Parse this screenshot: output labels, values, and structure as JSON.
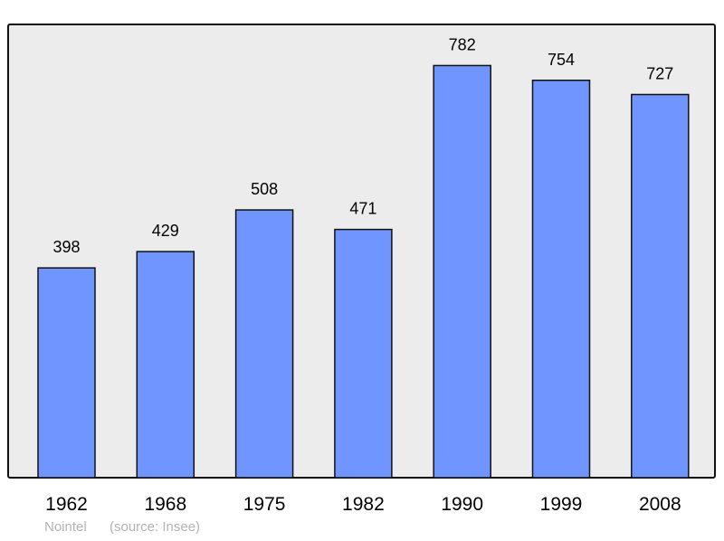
{
  "chart_data": {
    "type": "bar",
    "categories": [
      "1962",
      "1968",
      "1975",
      "1982",
      "1990",
      "1999",
      "2008"
    ],
    "values": [
      398,
      429,
      508,
      471,
      782,
      754,
      727
    ],
    "title": "",
    "xlabel": "",
    "ylabel": "",
    "ylim": [
      0,
      860
    ],
    "grid": false,
    "bar_color": "#7095ff",
    "background_color": "#ececec"
  },
  "footer": {
    "place": "Nointel",
    "source": "(source: Insee)"
  }
}
